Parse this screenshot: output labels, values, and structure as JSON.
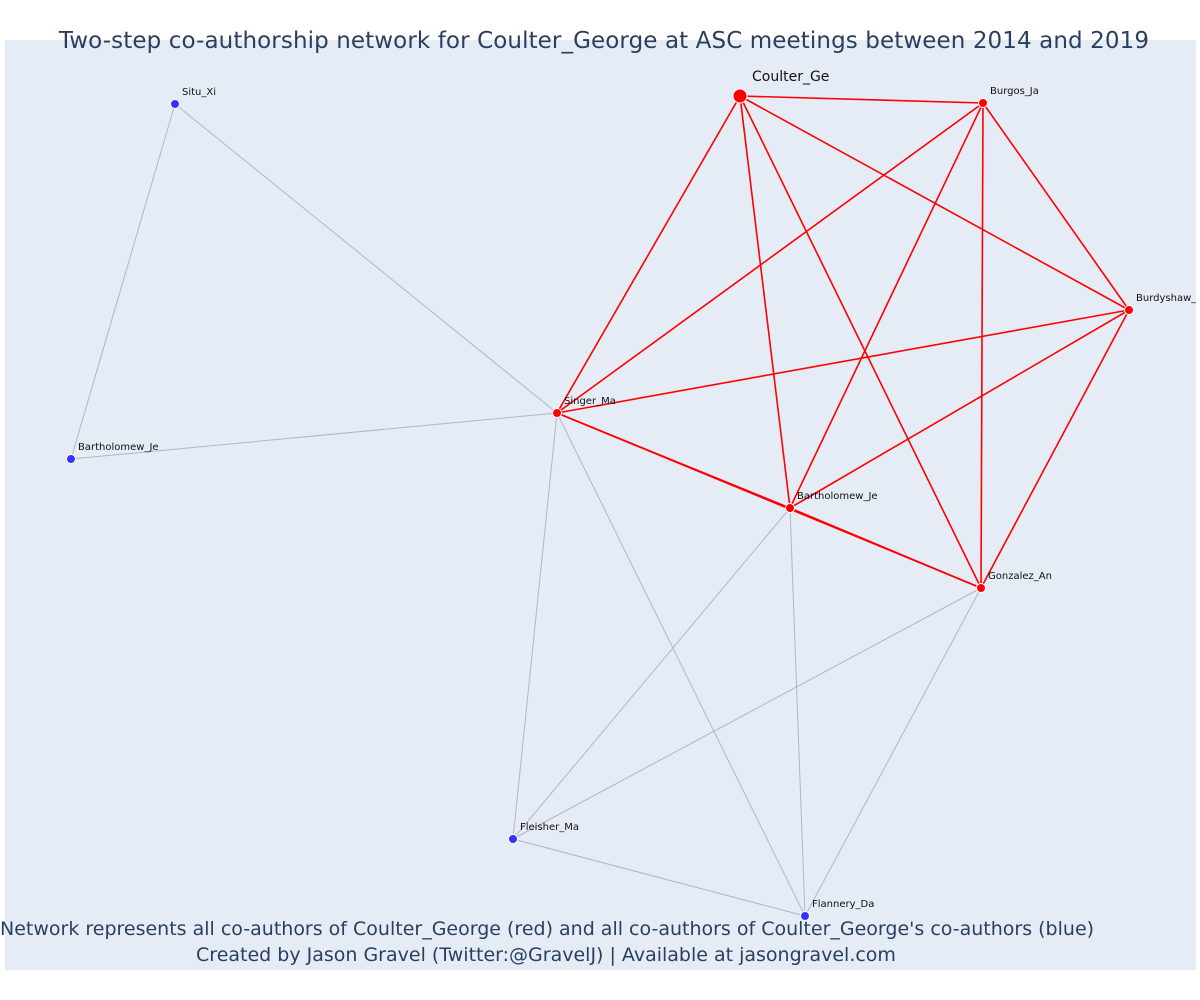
{
  "title": "Two-step co-authorship network for Coulter_George at ASC meetings between 2014 and 2019",
  "caption": {
    "line1": "Network represents all co-authors of Coulter_George (red) and all co-authors of Coulter_George's co-authors (blue)",
    "line2": "Created by Jason Gravel (Twitter:@GravelJ) | Available at jasongravel.com"
  },
  "colors": {
    "background": "#e5ecf6",
    "first_degree": "#ff0000",
    "second_degree": "#3333ff",
    "second_degree_edge": "#b4b4c8",
    "text": "#2a3f5f"
  },
  "nodes": [
    {
      "id": "coulter",
      "label": "Coulter_Ge",
      "group": "focal"
    },
    {
      "id": "burgos",
      "label": "Burgos_Ja",
      "group": "first"
    },
    {
      "id": "burdyshaw",
      "label": "Burdyshaw_T",
      "group": "first"
    },
    {
      "id": "singer",
      "label": "Singer_Ma",
      "group": "first"
    },
    {
      "id": "bartholomew_r",
      "label": "Bartholomew_Je",
      "group": "first"
    },
    {
      "id": "gonzalez",
      "label": "Gonzalez_An",
      "group": "first"
    },
    {
      "id": "situ",
      "label": "Situ_Xi",
      "group": "second"
    },
    {
      "id": "bartholomew_b",
      "label": "Bartholomew_Je",
      "group": "second"
    },
    {
      "id": "fleisher",
      "label": "Fleisher_Ma",
      "group": "second"
    },
    {
      "id": "flannery",
      "label": "Flannery_Da",
      "group": "second"
    }
  ],
  "edges": [
    {
      "source": "coulter",
      "target": "burgos",
      "type": "first"
    },
    {
      "source": "coulter",
      "target": "burdyshaw",
      "type": "first"
    },
    {
      "source": "coulter",
      "target": "singer",
      "type": "first"
    },
    {
      "source": "coulter",
      "target": "bartholomew_r",
      "type": "first"
    },
    {
      "source": "coulter",
      "target": "gonzalez",
      "type": "first"
    },
    {
      "source": "burgos",
      "target": "burdyshaw",
      "type": "first"
    },
    {
      "source": "burgos",
      "target": "singer",
      "type": "first"
    },
    {
      "source": "burgos",
      "target": "bartholomew_r",
      "type": "first"
    },
    {
      "source": "burgos",
      "target": "gonzalez",
      "type": "first"
    },
    {
      "source": "burdyshaw",
      "target": "singer",
      "type": "first"
    },
    {
      "source": "burdyshaw",
      "target": "bartholomew_r",
      "type": "first"
    },
    {
      "source": "burdyshaw",
      "target": "gonzalez",
      "type": "first"
    },
    {
      "source": "singer",
      "target": "bartholomew_r",
      "type": "first"
    },
    {
      "source": "singer",
      "target": "gonzalez",
      "type": "first"
    },
    {
      "source": "bartholomew_r",
      "target": "gonzalez",
      "type": "first"
    },
    {
      "source": "situ",
      "target": "singer",
      "type": "second"
    },
    {
      "source": "situ",
      "target": "bartholomew_b",
      "type": "second"
    },
    {
      "source": "bartholomew_b",
      "target": "singer",
      "type": "second"
    },
    {
      "source": "singer",
      "target": "fleisher",
      "type": "second"
    },
    {
      "source": "singer",
      "target": "flannery",
      "type": "second"
    },
    {
      "source": "bartholomew_r",
      "target": "fleisher",
      "type": "second"
    },
    {
      "source": "bartholomew_r",
      "target": "flannery",
      "type": "second"
    },
    {
      "source": "gonzalez",
      "target": "fleisher",
      "type": "second"
    },
    {
      "source": "gonzalez",
      "target": "flannery",
      "type": "second"
    },
    {
      "source": "fleisher",
      "target": "flannery",
      "type": "second"
    }
  ]
}
